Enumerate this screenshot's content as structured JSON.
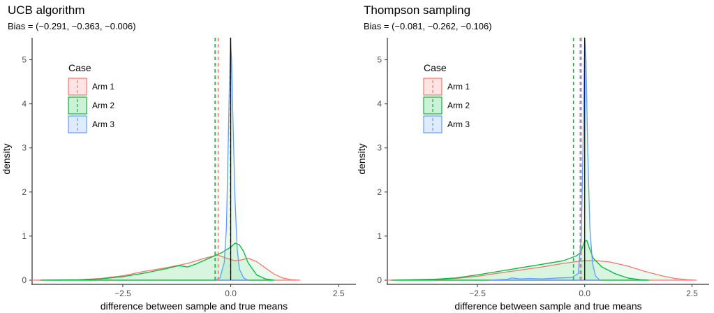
{
  "chart_data": [
    {
      "type": "area",
      "title": "UCB algorithm",
      "subtitle": "Bias = (−0.291, −0.363, −0.006)",
      "xlabel": "difference between sample and true means",
      "ylabel": "density",
      "xlim": [
        -4.6,
        2.9
      ],
      "ylim": [
        0,
        5.5
      ],
      "xticks": [
        {
          "value": -2.5,
          "label": "−2.5"
        },
        {
          "value": 0,
          "label": "0.0"
        },
        {
          "value": 2.5,
          "label": "2.5"
        }
      ],
      "yticks": [
        {
          "value": 0,
          "label": "0"
        },
        {
          "value": 1,
          "label": "1"
        },
        {
          "value": 2,
          "label": "2"
        },
        {
          "value": 3,
          "label": "3"
        },
        {
          "value": 4,
          "label": "4"
        },
        {
          "value": 5,
          "label": "5"
        }
      ],
      "legend": {
        "title": "Case",
        "placement": "top-left"
      },
      "reference_line_x": 0,
      "series": [
        {
          "name": "Arm 1",
          "color": "#F8766D",
          "bias": -0.291,
          "points": [
            [
              -4.6,
              0
            ],
            [
              -3.5,
              0.01
            ],
            [
              -3.0,
              0.04
            ],
            [
              -2.5,
              0.1
            ],
            [
              -2.0,
              0.2
            ],
            [
              -1.5,
              0.28
            ],
            [
              -1.0,
              0.38
            ],
            [
              -0.6,
              0.5
            ],
            [
              -0.3,
              0.57
            ],
            [
              -0.1,
              0.5
            ],
            [
              0.1,
              0.44
            ],
            [
              0.25,
              0.46
            ],
            [
              0.4,
              0.5
            ],
            [
              0.6,
              0.42
            ],
            [
              0.8,
              0.28
            ],
            [
              1.0,
              0.14
            ],
            [
              1.2,
              0.05
            ],
            [
              1.4,
              0.01
            ],
            [
              1.6,
              0
            ]
          ]
        },
        {
          "name": "Arm 2",
          "color": "#00BA38",
          "bias": -0.363,
          "points": [
            [
              -4.4,
              0
            ],
            [
              -3.5,
              0.01
            ],
            [
              -3.0,
              0.03
            ],
            [
              -2.5,
              0.08
            ],
            [
              -2.0,
              0.16
            ],
            [
              -1.5,
              0.26
            ],
            [
              -1.2,
              0.33
            ],
            [
              -1.0,
              0.3
            ],
            [
              -0.8,
              0.37
            ],
            [
              -0.5,
              0.5
            ],
            [
              -0.2,
              0.63
            ],
            [
              0.0,
              0.75
            ],
            [
              0.1,
              0.84
            ],
            [
              0.2,
              0.8
            ],
            [
              0.3,
              0.65
            ],
            [
              0.4,
              0.4
            ],
            [
              0.6,
              0.12
            ],
            [
              0.8,
              0.03
            ],
            [
              1.0,
              0
            ]
          ]
        },
        {
          "name": "Arm 3",
          "color": "#619CFF",
          "bias": -0.006,
          "points": [
            [
              -0.35,
              0
            ],
            [
              -0.25,
              0.05
            ],
            [
              -0.15,
              0.4
            ],
            [
              -0.1,
              1.2
            ],
            [
              -0.05,
              3.5
            ],
            [
              -0.01,
              5.5
            ],
            [
              0.02,
              5.0
            ],
            [
              0.05,
              3.7
            ],
            [
              0.1,
              1.8
            ],
            [
              0.15,
              0.7
            ],
            [
              0.2,
              0.25
            ],
            [
              0.3,
              0.05
            ],
            [
              0.4,
              0
            ]
          ]
        }
      ]
    },
    {
      "type": "area",
      "title": "Thompson sampling",
      "subtitle": "Bias = (−0.081, −0.262, −0.106)",
      "xlabel": "difference between sample and true means",
      "ylabel": "density",
      "xlim": [
        -4.6,
        2.9
      ],
      "ylim": [
        0,
        5.5
      ],
      "xticks": [
        {
          "value": -2.5,
          "label": "−2.5"
        },
        {
          "value": 0,
          "label": "0.0"
        },
        {
          "value": 2.5,
          "label": "2.5"
        }
      ],
      "yticks": [
        {
          "value": 0,
          "label": "0"
        },
        {
          "value": 1,
          "label": "1"
        },
        {
          "value": 2,
          "label": "2"
        },
        {
          "value": 3,
          "label": "3"
        },
        {
          "value": 4,
          "label": "4"
        },
        {
          "value": 5,
          "label": "5"
        }
      ],
      "legend": {
        "title": "Case",
        "placement": "top-left"
      },
      "reference_line_x": 0,
      "series": [
        {
          "name": "Arm 1",
          "color": "#F8766D",
          "bias": -0.081,
          "points": [
            [
              -4.6,
              0
            ],
            [
              -3.5,
              0.01
            ],
            [
              -3.0,
              0.04
            ],
            [
              -2.5,
              0.09
            ],
            [
              -2.0,
              0.16
            ],
            [
              -1.5,
              0.23
            ],
            [
              -1.0,
              0.3
            ],
            [
              -0.5,
              0.38
            ],
            [
              -0.2,
              0.42
            ],
            [
              0.0,
              0.44
            ],
            [
              0.3,
              0.44
            ],
            [
              0.6,
              0.41
            ],
            [
              1.0,
              0.32
            ],
            [
              1.4,
              0.2
            ],
            [
              1.8,
              0.1
            ],
            [
              2.1,
              0.04
            ],
            [
              2.4,
              0.01
            ],
            [
              2.6,
              0
            ]
          ]
        },
        {
          "name": "Arm 2",
          "color": "#00BA38",
          "bias": -0.262,
          "points": [
            [
              -4.5,
              0
            ],
            [
              -3.5,
              0.02
            ],
            [
              -3.0,
              0.05
            ],
            [
              -2.5,
              0.12
            ],
            [
              -2.0,
              0.2
            ],
            [
              -1.5,
              0.28
            ],
            [
              -1.0,
              0.36
            ],
            [
              -0.5,
              0.44
            ],
            [
              -0.2,
              0.55
            ],
            [
              -0.1,
              0.62
            ],
            [
              0.0,
              0.88
            ],
            [
              0.05,
              0.9
            ],
            [
              0.1,
              0.75
            ],
            [
              0.2,
              0.5
            ],
            [
              0.4,
              0.3
            ],
            [
              0.7,
              0.15
            ],
            [
              1.0,
              0.05
            ],
            [
              1.3,
              0.01
            ],
            [
              1.5,
              0
            ]
          ]
        },
        {
          "name": "Arm 3",
          "color": "#619CFF",
          "bias": -0.106,
          "points": [
            [
              -2.2,
              0
            ],
            [
              -1.8,
              0.02
            ],
            [
              -1.7,
              0.05
            ],
            [
              -1.5,
              0.03
            ],
            [
              -1.3,
              0.04
            ],
            [
              -1.0,
              0.03
            ],
            [
              -0.6,
              0.05
            ],
            [
              -0.3,
              0.06
            ],
            [
              -0.15,
              0.15
            ],
            [
              -0.08,
              1.0
            ],
            [
              -0.04,
              3.0
            ],
            [
              0.0,
              5.5
            ],
            [
              0.03,
              5.0
            ],
            [
              0.07,
              3.0
            ],
            [
              0.12,
              1.2
            ],
            [
              0.18,
              0.4
            ],
            [
              0.25,
              0.1
            ],
            [
              0.35,
              0
            ]
          ]
        }
      ]
    }
  ]
}
